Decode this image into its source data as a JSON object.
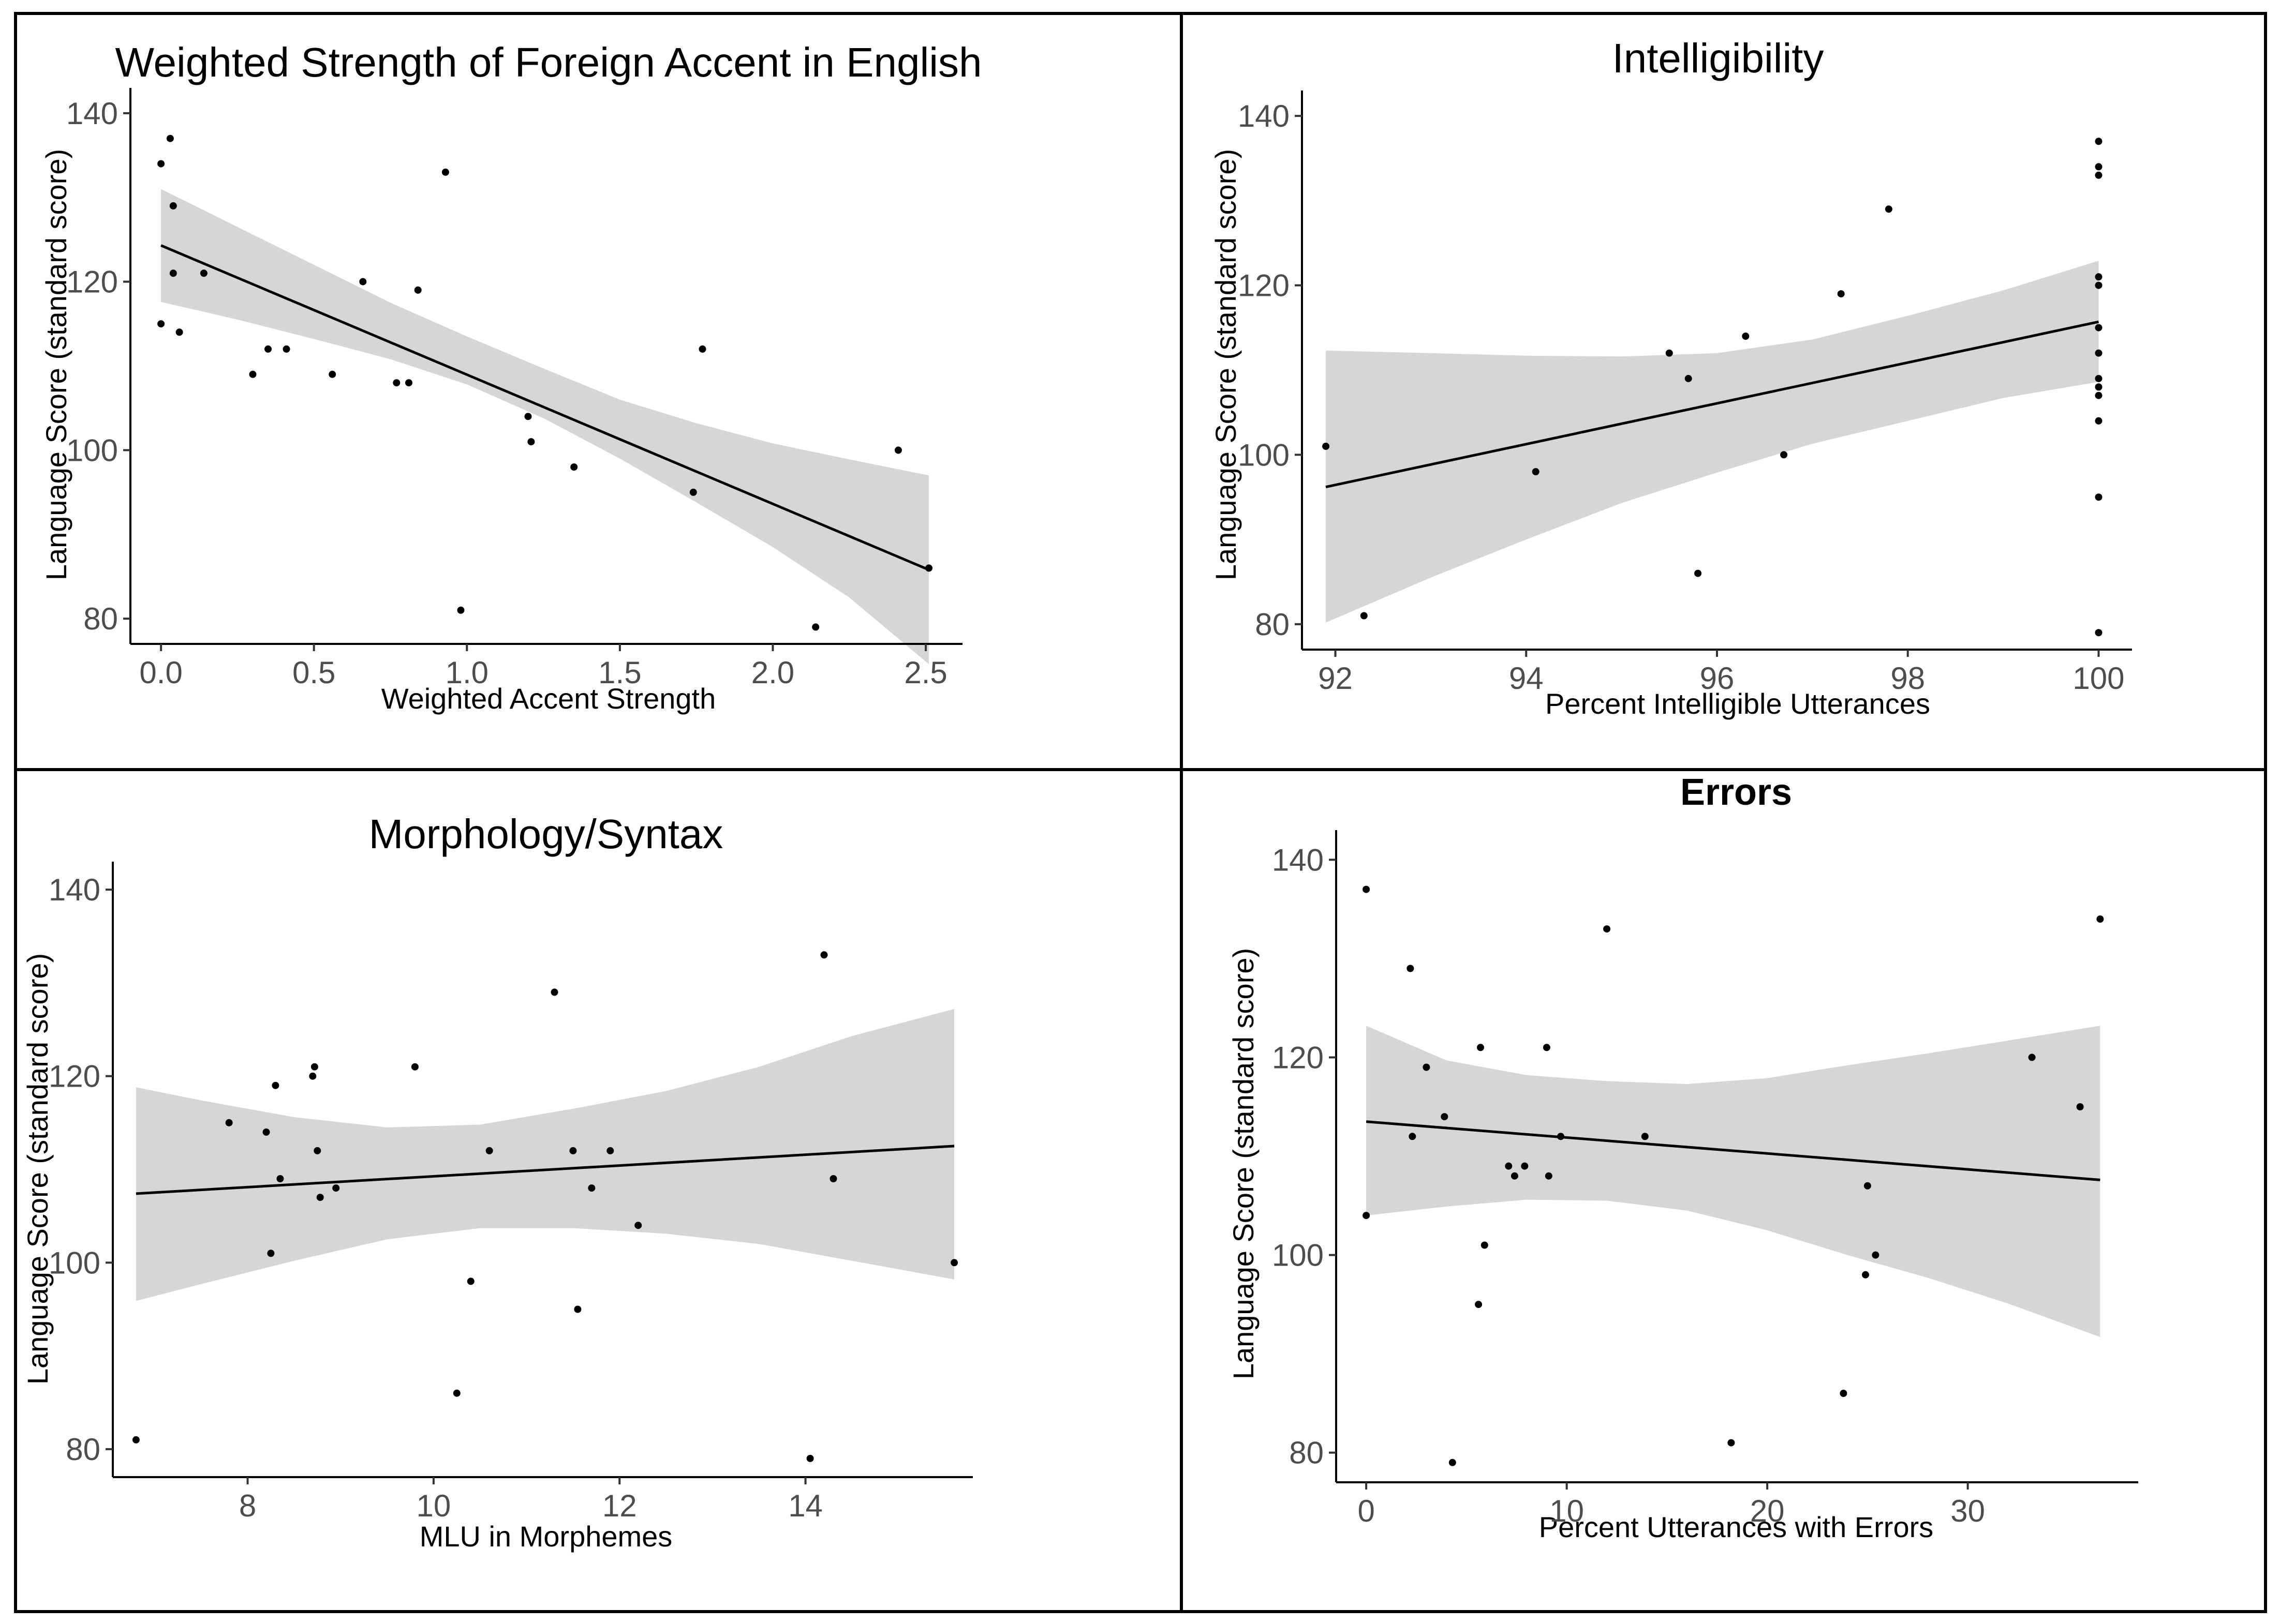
{
  "chart_data": [
    {
      "type": "scatter",
      "title": "Weighted Strength of Foreign Accent in English",
      "xlabel": "Weighted Accent Strength",
      "ylabel": "Language Score (standard score)",
      "xlim": [
        -0.1,
        2.62
      ],
      "ylim": [
        77,
        143
      ],
      "xticks": [
        0.0,
        0.5,
        1.0,
        1.5,
        2.0,
        2.5
      ],
      "xtick_labels": [
        "0.0",
        "0.5",
        "1.0",
        "1.5",
        "2.0",
        "2.5"
      ],
      "yticks": [
        80,
        100,
        120,
        140
      ],
      "ytick_labels": [
        "80",
        "100",
        "120",
        "140"
      ],
      "grid": false,
      "points": [
        [
          0.0,
          134
        ],
        [
          0.03,
          137
        ],
        [
          0.04,
          129
        ],
        [
          0.04,
          121
        ],
        [
          0.0,
          115
        ],
        [
          0.06,
          114
        ],
        [
          0.14,
          121
        ],
        [
          0.3,
          109
        ],
        [
          0.35,
          112
        ],
        [
          0.41,
          112
        ],
        [
          0.56,
          109
        ],
        [
          0.66,
          120
        ],
        [
          0.77,
          108
        ],
        [
          0.81,
          108
        ],
        [
          0.84,
          119
        ],
        [
          0.93,
          133
        ],
        [
          0.98,
          81
        ],
        [
          1.2,
          104
        ],
        [
          1.21,
          101
        ],
        [
          1.35,
          98
        ],
        [
          1.74,
          95
        ],
        [
          1.77,
          112
        ],
        [
          2.14,
          79
        ],
        [
          2.41,
          100
        ],
        [
          2.51,
          86
        ]
      ],
      "fit_line": {
        "x": [
          0.0,
          2.51
        ],
        "y": [
          124.3,
          85.8
        ]
      },
      "confidence_band": {
        "x": [
          0.0,
          0.25,
          0.5,
          0.75,
          1.0,
          1.25,
          1.5,
          1.75,
          2.0,
          2.25,
          2.51
        ],
        "upper": [
          131.0,
          126.5,
          122.0,
          117.5,
          113.5,
          109.7,
          106.0,
          103.2,
          100.8,
          98.9,
          97.0
        ],
        "lower": [
          117.6,
          115.5,
          113.2,
          110.8,
          107.8,
          103.8,
          99.0,
          93.8,
          88.5,
          82.5,
          74.6
        ]
      }
    },
    {
      "type": "scatter",
      "title": "Intelligibility",
      "xlabel": "Percent Intelligible Utterances",
      "ylabel": "Language Score (standard score)",
      "xlim": [
        91.65,
        100.35
      ],
      "ylim": [
        77,
        143
      ],
      "xticks": [
        92,
        94,
        96,
        98,
        100
      ],
      "xtick_labels": [
        "92",
        "94",
        "96",
        "98",
        "100"
      ],
      "yticks": [
        80,
        100,
        120,
        140
      ],
      "ytick_labels": [
        "80",
        "100",
        "120",
        "140"
      ],
      "grid": false,
      "points": [
        [
          91.9,
          101
        ],
        [
          92.3,
          81
        ],
        [
          94.1,
          98
        ],
        [
          95.5,
          112
        ],
        [
          95.7,
          109
        ],
        [
          95.8,
          86
        ],
        [
          96.3,
          114
        ],
        [
          96.7,
          100
        ],
        [
          97.3,
          119
        ],
        [
          97.8,
          129
        ],
        [
          100,
          137
        ],
        [
          100,
          134
        ],
        [
          100,
          133
        ],
        [
          100,
          121
        ],
        [
          100,
          120
        ],
        [
          100,
          115
        ],
        [
          100,
          112
        ],
        [
          100,
          109
        ],
        [
          100,
          108
        ],
        [
          100,
          107
        ],
        [
          100,
          104
        ],
        [
          100,
          95
        ],
        [
          100,
          79
        ]
      ],
      "fit_line": {
        "x": [
          91.9,
          100
        ],
        "y": [
          96.2,
          115.7
        ]
      },
      "confidence_band": {
        "x": [
          91.9,
          93,
          94,
          95,
          96,
          97,
          98,
          99,
          100
        ],
        "upper": [
          112.3,
          112.0,
          111.7,
          111.6,
          112.0,
          113.6,
          116.4,
          119.4,
          122.9
        ],
        "lower": [
          80.2,
          85.5,
          90.0,
          94.3,
          97.9,
          101.3,
          104.0,
          106.7,
          108.6
        ]
      }
    },
    {
      "type": "scatter",
      "title": "Morphology/Syntax",
      "xlabel": "MLU in Morphemes",
      "ylabel": "Language Score (standard score)",
      "xlim": [
        6.55,
        15.8
      ],
      "ylim": [
        77,
        143
      ],
      "xticks": [
        8,
        10,
        12,
        14
      ],
      "xtick_labels": [
        "8",
        "10",
        "12",
        "14"
      ],
      "yticks": [
        80,
        100,
        120,
        140
      ],
      "ytick_labels": [
        "80",
        "100",
        "120",
        "140"
      ],
      "grid": false,
      "points": [
        [
          6.8,
          81
        ],
        [
          7.8,
          115
        ],
        [
          8.2,
          114
        ],
        [
          8.25,
          101
        ],
        [
          8.3,
          119
        ],
        [
          8.35,
          109
        ],
        [
          8.7,
          120
        ],
        [
          8.72,
          121
        ],
        [
          8.75,
          112
        ],
        [
          8.78,
          107
        ],
        [
          8.95,
          108
        ],
        [
          9.8,
          121
        ],
        [
          10.25,
          86
        ],
        [
          10.4,
          98
        ],
        [
          10.6,
          112
        ],
        [
          11.3,
          129
        ],
        [
          11.5,
          112
        ],
        [
          11.55,
          95
        ],
        [
          11.7,
          108
        ],
        [
          11.9,
          112
        ],
        [
          12.2,
          104
        ],
        [
          14.05,
          79
        ],
        [
          14.2,
          133
        ],
        [
          14.3,
          109
        ],
        [
          15.6,
          100
        ]
      ],
      "fit_line": {
        "x": [
          6.8,
          15.6
        ],
        "y": [
          107.4,
          112.5
        ]
      },
      "confidence_band": {
        "x": [
          6.8,
          7.5,
          8.5,
          9.5,
          10.5,
          11.5,
          12.5,
          13.5,
          14.5,
          15.6
        ],
        "upper": [
          118.8,
          117.4,
          115.6,
          114.5,
          114.8,
          116.5,
          118.4,
          121.0,
          124.3,
          127.2
        ],
        "lower": [
          95.9,
          97.7,
          100.2,
          102.5,
          103.7,
          103.7,
          103.1,
          102.0,
          100.2,
          98.2
        ]
      }
    },
    {
      "type": "scatter",
      "title": "Errors",
      "xlabel": "Percent Utterances with Errors",
      "ylabel": "Language Score (standard score)",
      "xlim": [
        -1.5,
        38.5
      ],
      "ylim": [
        77,
        143
      ],
      "xticks": [
        0,
        10,
        20,
        30
      ],
      "xtick_labels": [
        "0",
        "10",
        "20",
        "30"
      ],
      "yticks": [
        80,
        100,
        120,
        140
      ],
      "ytick_labels": [
        "80",
        "100",
        "120",
        "140"
      ],
      "grid": false,
      "points": [
        [
          0,
          137
        ],
        [
          0,
          104
        ],
        [
          2.2,
          129
        ],
        [
          2.3,
          112
        ],
        [
          3.0,
          119
        ],
        [
          3.9,
          114
        ],
        [
          4.3,
          79
        ],
        [
          5.6,
          95
        ],
        [
          5.7,
          121
        ],
        [
          5.9,
          101
        ],
        [
          7.1,
          109
        ],
        [
          7.4,
          108
        ],
        [
          7.9,
          109
        ],
        [
          9.0,
          121
        ],
        [
          9.1,
          108
        ],
        [
          9.7,
          112
        ],
        [
          12.0,
          133
        ],
        [
          13.9,
          112
        ],
        [
          18.2,
          81
        ],
        [
          23.8,
          86
        ],
        [
          24.9,
          98
        ],
        [
          25.0,
          107
        ],
        [
          25.4,
          100
        ],
        [
          33.2,
          120
        ],
        [
          35.6,
          115
        ],
        [
          36.6,
          134
        ]
      ],
      "fit_line": {
        "x": [
          0,
          36.6
        ],
        "y": [
          113.5,
          107.6
        ]
      },
      "confidence_band": {
        "x": [
          0,
          4,
          8,
          12,
          16,
          20,
          24,
          28,
          32,
          36.6
        ],
        "upper": [
          123.2,
          119.7,
          118.2,
          117.6,
          117.3,
          117.9,
          119.2,
          120.4,
          121.7,
          123.2
        ],
        "lower": [
          104.0,
          104.9,
          105.6,
          105.5,
          104.5,
          102.5,
          100.0,
          97.7,
          95.1,
          91.7
        ]
      }
    }
  ]
}
